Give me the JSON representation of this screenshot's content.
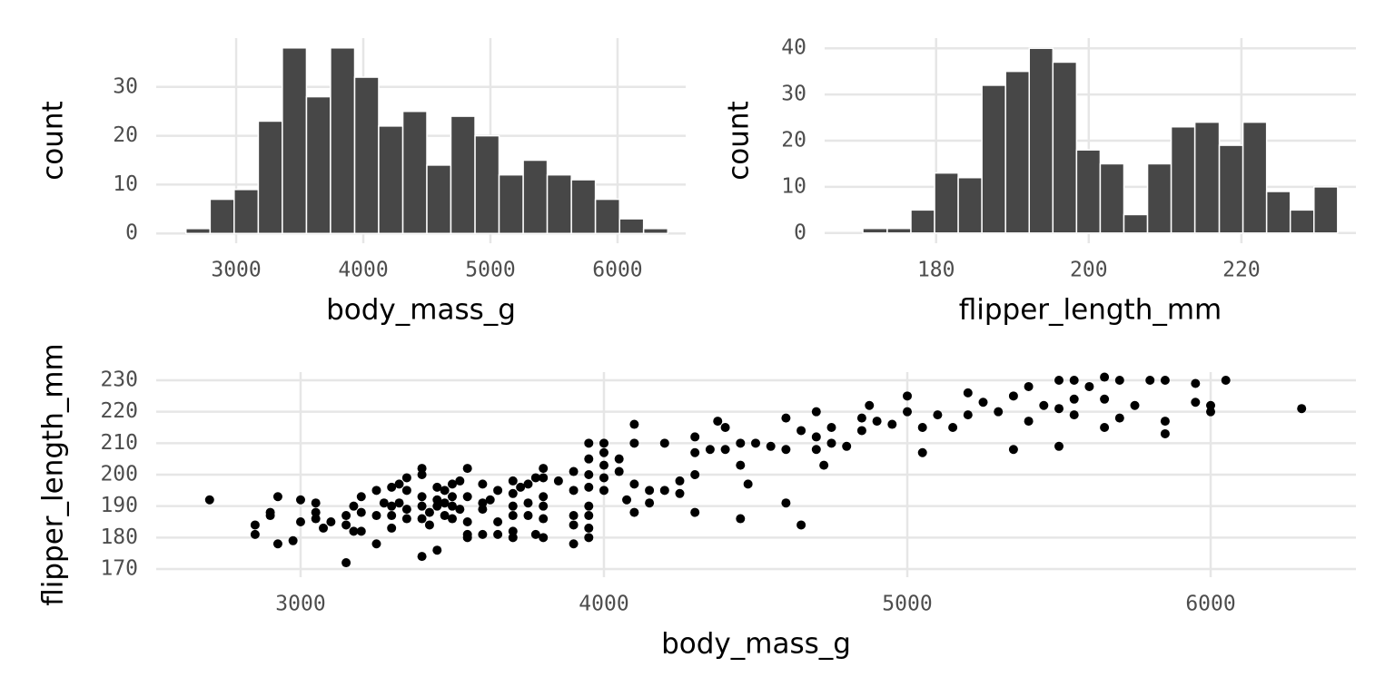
{
  "chart_data": [
    {
      "type": "histogram",
      "xlabel": "body_mass_g",
      "ylabel": "count",
      "color": "#474747",
      "bins": [
        2605,
        2795,
        2984,
        3174,
        3363,
        3553,
        3742,
        3932,
        4121,
        4311,
        4500,
        4689,
        4879,
        5068,
        5258,
        5447,
        5637,
        5826,
        6016,
        6205,
        6395
      ],
      "values": [
        1,
        7,
        9,
        23,
        38,
        28,
        38,
        32,
        22,
        25,
        14,
        24,
        20,
        12,
        15,
        12,
        11,
        7,
        3,
        1
      ],
      "xlim": [
        2371,
        6536
      ],
      "ylim": [
        -2,
        40
      ],
      "xticks": [
        3000,
        4000,
        5000,
        6000
      ],
      "yticks": [
        0,
        10,
        20,
        30
      ],
      "grid": true
    },
    {
      "type": "histogram",
      "xlabel": "flipper_length_mm",
      "ylabel": "count",
      "color": "#474747",
      "bins": [
        170.4,
        173.6,
        176.7,
        179.8,
        182.9,
        186.0,
        189.1,
        192.2,
        195.3,
        198.4,
        201.5,
        204.6,
        207.7,
        210.8,
        213.9,
        217.1,
        220.2,
        223.3,
        226.4,
        229.5,
        232.6
      ],
      "values": [
        1,
        1,
        5,
        13,
        12,
        32,
        35,
        40,
        37,
        18,
        15,
        4,
        15,
        23,
        24,
        19,
        24,
        9,
        5,
        10
      ],
      "xlim": [
        165.4,
        235
      ],
      "ylim": [
        -2.2,
        42.2
      ],
      "xticks": [
        180,
        200,
        220
      ],
      "yticks": [
        0,
        10,
        20,
        30,
        40
      ],
      "grid": true
    },
    {
      "type": "scatter",
      "xlabel": "body_mass_g",
      "ylabel": "flipper_length_mm",
      "color": "#000000",
      "x": [
        2700,
        2850,
        2850,
        2900,
        2900,
        2925,
        2925,
        2975,
        3000,
        3000,
        3050,
        3050,
        3050,
        3075,
        3100,
        3150,
        3150,
        3150,
        3175,
        3175,
        3200,
        3200,
        3200,
        3250,
        3250,
        3250,
        3275,
        3300,
        3300,
        3300,
        3300,
        3325,
        3325,
        3350,
        3350,
        3350,
        3350,
        3400,
        3400,
        3400,
        3400,
        3400,
        3400,
        3425,
        3425,
        3450,
        3450,
        3450,
        3450,
        3475,
        3475,
        3475,
        3500,
        3500,
        3500,
        3500,
        3525,
        3525,
        3550,
        3550,
        3550,
        3550,
        3550,
        3600,
        3600,
        3600,
        3600,
        3625,
        3650,
        3650,
        3650,
        3700,
        3700,
        3700,
        3700,
        3700,
        3700,
        3725,
        3750,
        3750,
        3750,
        3775,
        3775,
        3800,
        3800,
        3800,
        3800,
        3800,
        3800,
        3850,
        3900,
        3900,
        3900,
        3900,
        3900,
        3950,
        3950,
        3950,
        3950,
        3950,
        3950,
        3950,
        3950,
        4000,
        4000,
        4000,
        4000,
        4000,
        4050,
        4050,
        4075,
        4100,
        4100,
        4100,
        4100,
        4150,
        4150,
        4200,
        4200,
        4250,
        4250,
        4300,
        4300,
        4300,
        4300,
        4350,
        4375,
        4400,
        4400,
        4450,
        4450,
        4450,
        4475,
        4500,
        4550,
        4600,
        4600,
        4600,
        4650,
        4650,
        4700,
        4700,
        4700,
        4725,
        4750,
        4750,
        4800,
        4850,
        4850,
        4875,
        4900,
        4950,
        5000,
        5000,
        5050,
        5050,
        5100,
        5150,
        5200,
        5200,
        5250,
        5300,
        5350,
        5350,
        5400,
        5400,
        5450,
        5500,
        5500,
        5500,
        5550,
        5550,
        5550,
        5600,
        5650,
        5650,
        5650,
        5700,
        5700,
        5750,
        5800,
        5850,
        5850,
        5850,
        5950,
        5950,
        6000,
        6000,
        6050,
        6300
      ],
      "y": [
        192,
        184,
        181,
        188,
        187,
        178,
        193,
        179,
        192,
        185,
        191,
        188,
        186,
        183,
        185,
        172,
        187,
        184,
        190,
        182,
        193,
        188,
        182,
        195,
        178,
        187,
        191,
        196,
        190,
        187,
        183,
        197,
        191,
        199,
        195,
        189,
        186,
        202,
        200,
        193,
        190,
        186,
        174,
        184,
        188,
        196,
        192,
        190,
        176,
        195,
        191,
        187,
        197,
        193,
        190,
        186,
        198,
        189,
        202,
        193,
        185,
        181,
        180,
        197,
        191,
        189,
        181,
        192,
        195,
        185,
        181,
        198,
        194,
        190,
        187,
        182,
        180,
        196,
        197,
        191,
        187,
        199,
        181,
        202,
        199,
        193,
        190,
        186,
        180,
        198,
        201,
        195,
        187,
        184,
        178,
        210,
        205,
        200,
        196,
        190,
        187,
        183,
        180,
        210,
        207,
        203,
        199,
        195,
        201,
        205,
        192,
        216,
        210,
        197,
        188,
        195,
        191,
        210,
        195,
        198,
        194,
        212,
        207,
        200,
        188,
        208,
        217,
        215,
        208,
        203,
        186,
        210,
        197,
        210,
        209,
        218,
        191,
        208,
        214,
        184,
        220,
        212,
        208,
        203,
        215,
        210,
        209,
        218,
        214,
        222,
        217,
        216,
        225,
        220,
        215,
        207,
        219,
        215,
        226,
        219,
        223,
        220,
        225,
        208,
        228,
        217,
        222,
        230,
        221,
        209,
        230,
        224,
        219,
        228,
        231,
        224,
        215,
        230,
        218,
        222,
        230,
        230,
        217,
        213,
        229,
        223,
        222,
        220,
        230,
        221
      ],
      "xlim": [
        2524,
        6479
      ],
      "ylim": [
        167.4,
        232.6
      ],
      "xticks": [
        3000,
        4000,
        5000,
        6000
      ],
      "yticks": [
        170,
        180,
        190,
        200,
        210,
        220,
        230
      ],
      "grid": true
    }
  ]
}
